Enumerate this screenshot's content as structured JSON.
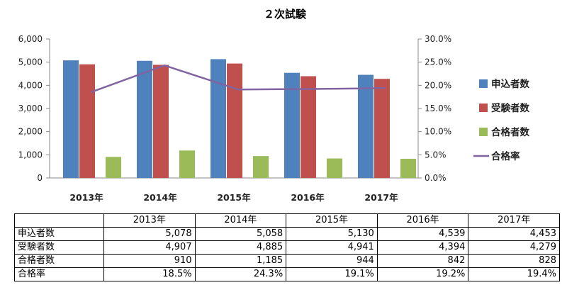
{
  "chart_data": {
    "type": "bar",
    "title": "２次試験",
    "categories": [
      "2013年",
      "2014年",
      "2015年",
      "2016年",
      "2017年"
    ],
    "series": [
      {
        "name": "申込者数",
        "type": "bar",
        "axis": "left",
        "color": "#4F81BD",
        "values": [
          5078,
          5058,
          5130,
          4539,
          4453
        ]
      },
      {
        "name": "受験者数",
        "type": "bar",
        "axis": "left",
        "color": "#C0504D",
        "values": [
          4907,
          4885,
          4941,
          4394,
          4279
        ]
      },
      {
        "name": "合格者数",
        "type": "bar",
        "axis": "left",
        "color": "#9BBB59",
        "values": [
          910,
          1185,
          944,
          842,
          828
        ]
      },
      {
        "name": "合格率",
        "type": "line",
        "axis": "right",
        "color": "#8064A2",
        "values": [
          18.5,
          24.3,
          19.1,
          19.2,
          19.4
        ]
      }
    ],
    "y_left": {
      "min": 0,
      "max": 6000,
      "ticks": [
        "0",
        "1,000",
        "2,000",
        "3,000",
        "4,000",
        "5,000",
        "6,000"
      ]
    },
    "y_right": {
      "min": 0,
      "max": 30,
      "ticks": [
        "0.0%",
        "5.0%",
        "10.0%",
        "15.0%",
        "20.0%",
        "25.0%",
        "30.0%"
      ]
    },
    "grid": false,
    "legend_position": "right"
  },
  "table": {
    "header": [
      "",
      "2013年",
      "2014年",
      "2015年",
      "2016年",
      "2017年"
    ],
    "rows": [
      [
        "申込者数",
        "5,078",
        "5,058",
        "5,130",
        "4,539",
        "4,453"
      ],
      [
        "受験者数",
        "4,907",
        "4,885",
        "4,941",
        "4,394",
        "4,279"
      ],
      [
        "合格者数",
        "910",
        "1,185",
        "944",
        "842",
        "828"
      ],
      [
        "合格率",
        "18.5%",
        "24.3%",
        "19.1%",
        "19.2%",
        "19.4%"
      ]
    ]
  }
}
